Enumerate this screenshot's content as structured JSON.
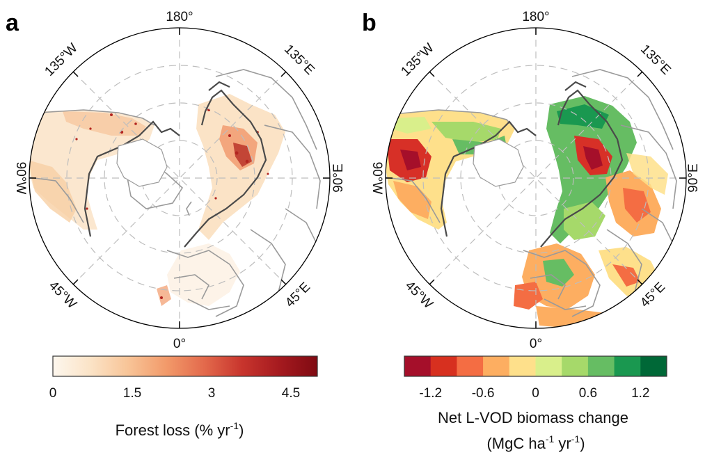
{
  "panels": [
    {
      "id": "a",
      "letter": "a",
      "lon_labels": {
        "top": "180°",
        "top_right": "135°E",
        "right": "90°E",
        "bottom_right": "45°E",
        "bottom": "0°",
        "bottom_left": "45°W",
        "left": "90°W",
        "top_left": "135°W"
      },
      "colorbar": {
        "type": "continuous",
        "colors": [
          "#fdf7ee",
          "#fbe3c6",
          "#f8c497",
          "#f29a6a",
          "#e36a4c",
          "#c8352d",
          "#a51a1f",
          "#7f0a12"
        ],
        "tick_labels": [
          "0",
          "1.5",
          "3",
          "4.5"
        ],
        "tick_values": [
          0,
          1.5,
          3,
          4.5
        ],
        "range": [
          0,
          5
        ],
        "title_main": "Forest loss (% yr",
        "title_sup": "-1",
        "title_end": ")"
      }
    },
    {
      "id": "b",
      "letter": "b",
      "lon_labels": {
        "top": "180°",
        "top_right": "135°E",
        "right": "90°E",
        "bottom_right": "45°E",
        "bottom": "0°",
        "bottom_left": "45°W",
        "left": "90°W",
        "top_left": "135°W"
      },
      "colorbar": {
        "type": "discrete",
        "colors": [
          "#a50f2a",
          "#d7301f",
          "#f46d43",
          "#fdae61",
          "#fee08b",
          "#d9ef8b",
          "#a6d96a",
          "#66bd63",
          "#1a9850",
          "#006837"
        ],
        "tick_labels": [
          "-1.2",
          "-0.6",
          "0",
          "0.6",
          "1.2"
        ],
        "tick_values": [
          -1.2,
          -0.6,
          0,
          0.6,
          1.2
        ],
        "range": [
          -1.5,
          1.5
        ],
        "title_line1": "Net L-VOD biomass change",
        "title_line2_a": "(MgC ha",
        "title_line2_sup1": "-1",
        "title_line2_b": " yr",
        "title_line2_sup2": "-1",
        "title_line2_c": ")"
      }
    }
  ],
  "colors": {
    "coast": "#4a4a4a",
    "border": "#9a9a9a",
    "graticule": "#bdbdbd",
    "frame": "#000000"
  }
}
